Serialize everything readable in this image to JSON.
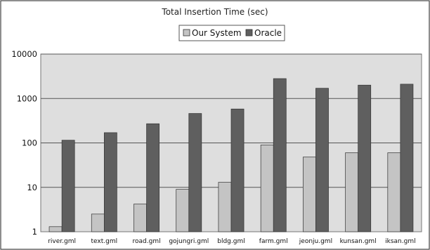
{
  "chart_data": {
    "type": "bar",
    "title": "Total Insertion Time (sec)",
    "xlabel": "",
    "ylabel": "",
    "yscale": "log",
    "ylim": [
      1,
      10000
    ],
    "yticks": [
      "1",
      "10",
      "100",
      "1000",
      "10000"
    ],
    "categories": [
      "river.gml",
      "text.gml",
      "road.gml",
      "gojungri.gml",
      "bldg.gml",
      "farm.gml",
      "jeonju.gml",
      "kunsan.gml",
      "iksan.gml"
    ],
    "series": [
      {
        "name": "Our System",
        "color": "#c4c4c4",
        "values": [
          1.3,
          2.5,
          4.2,
          9,
          13,
          90,
          48,
          60,
          60
        ]
      },
      {
        "name": "Oracle",
        "color": "#5f5f5f",
        "values": [
          115,
          170,
          270,
          460,
          580,
          2800,
          1700,
          2000,
          2100
        ]
      }
    ],
    "grid": true,
    "legend_position": "top-center",
    "plot_background": "#dedede"
  }
}
